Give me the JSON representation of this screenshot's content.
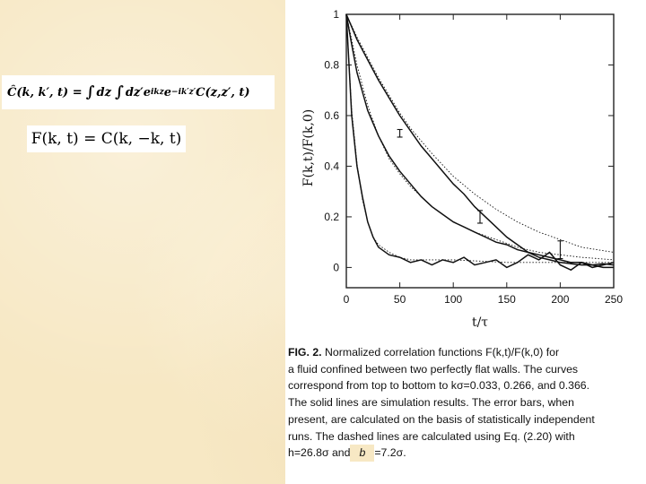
{
  "equations": {
    "eq1": "Ĉ(k,k′,t) = ∫ dz ∫ dz′ e^{ikz} e^{−ik′z′} C(z,z′,t)",
    "eq1_parts": {
      "lhs": "Ĉ(k, k′, t) =",
      "int1": "∫",
      "dz": "dz",
      "int2": "∫",
      "dzp": "dz′e",
      "exp1": "ikz",
      "e2": "e",
      "exp2": "−ik′z′",
      "tail": "C(z,z′, t)"
    },
    "eq2": "F(k, t) = C(k, −k, t)"
  },
  "chart_data": {
    "type": "line",
    "xlabel": "t/τ",
    "ylabel": "F(k,t)/F(k,0)",
    "xlim": [
      0,
      250
    ],
    "ylim": [
      -0.08,
      1.0
    ],
    "x_ticks": [
      0,
      50,
      100,
      150,
      200,
      250
    ],
    "y_ticks": [
      0,
      0.2,
      0.4,
      0.6,
      0.8,
      1
    ],
    "x_tick_labels": [
      "0",
      "50",
      "100",
      "150",
      "200",
      "250"
    ],
    "y_tick_labels": [
      "0",
      "0.2",
      "0.4",
      "0.6",
      "0.8",
      "1"
    ],
    "series": [
      {
        "style": "solid",
        "x": [
          0,
          5,
          10,
          20,
          30,
          40,
          50,
          60,
          70,
          80,
          90,
          100,
          110,
          120,
          130,
          140,
          150,
          160,
          170,
          180,
          190,
          200,
          210,
          220,
          230,
          240,
          250
        ],
        "y": [
          1.0,
          0.95,
          0.9,
          0.82,
          0.74,
          0.67,
          0.6,
          0.54,
          0.48,
          0.43,
          0.38,
          0.33,
          0.29,
          0.24,
          0.2,
          0.16,
          0.12,
          0.09,
          0.06,
          0.04,
          0.03,
          0.02,
          0.015,
          0.01,
          0.01,
          0.015,
          0.01
        ]
      },
      {
        "style": "solid",
        "x": [
          0,
          5,
          10,
          20,
          30,
          40,
          50,
          60,
          70,
          80,
          90,
          100,
          110,
          120,
          130,
          140,
          150,
          160,
          170,
          180,
          190,
          200,
          210,
          220,
          230,
          240,
          250
        ],
        "y": [
          1.0,
          0.88,
          0.77,
          0.62,
          0.52,
          0.44,
          0.38,
          0.33,
          0.28,
          0.24,
          0.21,
          0.18,
          0.16,
          0.14,
          0.12,
          0.1,
          0.09,
          0.07,
          0.06,
          0.05,
          0.04,
          0.03,
          0.02,
          0.02,
          0.01,
          0.0,
          0.0
        ]
      },
      {
        "style": "solid",
        "x": [
          0,
          5,
          10,
          15,
          20,
          25,
          30,
          40,
          50,
          60,
          70,
          80,
          90,
          100,
          110,
          120,
          130,
          140,
          150,
          160,
          170,
          180,
          190,
          200,
          210,
          220,
          230,
          240,
          250
        ],
        "y": [
          1.0,
          0.6,
          0.4,
          0.28,
          0.18,
          0.12,
          0.08,
          0.05,
          0.04,
          0.02,
          0.03,
          0.01,
          0.03,
          0.02,
          0.04,
          0.01,
          0.02,
          0.03,
          0.0,
          0.02,
          0.05,
          0.03,
          0.06,
          0.01,
          -0.01,
          0.02,
          0.0,
          0.01,
          0.02
        ]
      },
      {
        "style": "dashed",
        "x": [
          0,
          10,
          20,
          30,
          40,
          50,
          60,
          80,
          100,
          120,
          140,
          160,
          180,
          200,
          220,
          250
        ],
        "y": [
          1.0,
          0.91,
          0.83,
          0.75,
          0.68,
          0.61,
          0.55,
          0.45,
          0.36,
          0.29,
          0.23,
          0.18,
          0.14,
          0.11,
          0.08,
          0.06
        ]
      },
      {
        "style": "dashed",
        "x": [
          0,
          10,
          20,
          30,
          40,
          50,
          60,
          80,
          100,
          120,
          140,
          160,
          180,
          200,
          220,
          250
        ],
        "y": [
          1.0,
          0.8,
          0.64,
          0.52,
          0.43,
          0.37,
          0.32,
          0.24,
          0.18,
          0.14,
          0.11,
          0.08,
          0.06,
          0.05,
          0.04,
          0.03
        ]
      },
      {
        "style": "dashed",
        "x": [
          0,
          5,
          10,
          15,
          20,
          25,
          30,
          40,
          50,
          60,
          80,
          100,
          150,
          200,
          250
        ],
        "y": [
          1.0,
          0.62,
          0.41,
          0.27,
          0.18,
          0.12,
          0.09,
          0.06,
          0.04,
          0.03,
          0.03,
          0.03,
          0.02,
          0.02,
          0.02
        ]
      }
    ],
    "error_bars": [
      {
        "x": 50,
        "y": 0.53,
        "err": 0.015
      },
      {
        "x": 125,
        "y": 0.2,
        "err": 0.025
      },
      {
        "x": 200,
        "y": 0.07,
        "err": 0.035
      }
    ]
  },
  "caption": {
    "line1_label": "FIG. 2.",
    "line1_rest": "Normalized correlation functions F(k,t)/F(k,0) for",
    "line2": "a fluid confined between two perfectly flat walls. The curves",
    "line3": "correspond from top to bottom to kσ=0.033, 0.266, and 0.366.",
    "line4": "The solid lines are simulation results. The error bars, when",
    "line5": "present, are calculated on the basis of statistically independent",
    "line6": "runs. The dashed lines are calculated using Eq. (2.20) with",
    "line7_start": "h=26.8σ and",
    "line7_b": "b",
    "line7_end": "=7.2σ."
  }
}
